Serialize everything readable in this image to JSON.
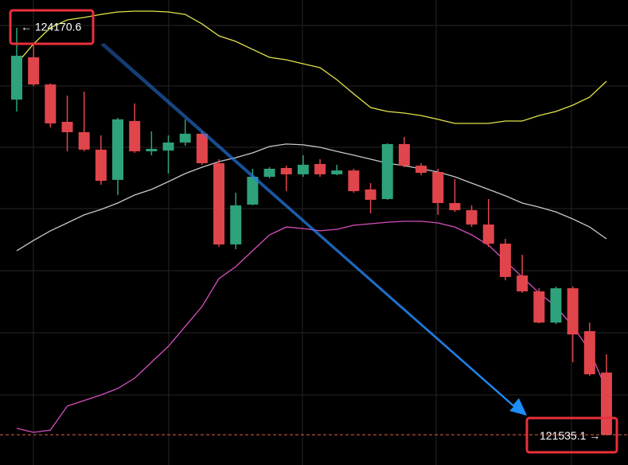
{
  "chart_data": {
    "type": "candlestick",
    "ylim": [
      121339.4,
      124351.1
    ],
    "up_color": "#2ea27a",
    "down_color": "#e0454b",
    "open": [
      123706,
      123980,
      123804,
      123562,
      123495,
      123382,
      123186,
      123567,
      123371,
      123376,
      123428,
      123485,
      123294,
      122768,
      123026,
      123206,
      123263,
      123222,
      123289,
      123222,
      123247,
      123124,
      123062,
      123418,
      123278,
      123237,
      123036,
      122990,
      122897,
      122773,
      122567,
      122464,
      122262,
      122484,
      122206,
      121938
    ],
    "high": [
      124170.6,
      124067,
      123810,
      123732,
      123758,
      123474,
      123588,
      123681,
      123500,
      123474,
      123578,
      123500,
      123320,
      123103,
      123258,
      123268,
      123278,
      123345,
      123320,
      123284,
      123258,
      123165,
      123423,
      123464,
      123294,
      123258,
      123191,
      123021,
      123062,
      122804,
      122701,
      122484,
      122495,
      122495,
      122262,
      122056
    ],
    "low": [
      123629,
      123794,
      123526,
      123371,
      123371,
      123155,
      123088,
      123361,
      123345,
      123227,
      123407,
      123284,
      122752,
      122737,
      123021,
      123196,
      123113,
      123206,
      123206,
      123216,
      123103,
      122969,
      123057,
      123268,
      123216,
      122959,
      122979,
      122881,
      122752,
      122536,
      122454,
      122257,
      122252,
      122005,
      121917,
      121530
    ],
    "close": [
      123990,
      123804,
      123552,
      123495,
      123382,
      123180,
      123578,
      123371,
      123387,
      123428,
      123485,
      123294,
      122768,
      123021,
      123206,
      123258,
      123222,
      123284,
      123222,
      123247,
      123113,
      123057,
      123418,
      123278,
      123232,
      123036,
      122990,
      122897,
      122773,
      122557,
      122464,
      122262,
      122484,
      122185,
      121927,
      121535.1
    ],
    "series": [
      {
        "color": "#e3e34a",
        "values": [
          123938,
          124067,
          124171,
          124222,
          124238,
          124258,
          124274,
          124279,
          124279,
          124274,
          124258,
          124196,
          124119,
          124083,
          124031,
          123980,
          123964,
          123938,
          123913,
          123835,
          123743,
          123655,
          123629,
          123619,
          123603,
          123578,
          123552,
          123552,
          123552,
          123567,
          123567,
          123603,
          123629,
          123670,
          123722,
          123825
        ]
      },
      {
        "color": "#c8c8c8",
        "values": [
          122727,
          122794,
          122856,
          122907,
          122959,
          122995,
          123036,
          123088,
          123124,
          123175,
          123227,
          123268,
          123304,
          123330,
          123361,
          123402,
          123418,
          123413,
          123397,
          123371,
          123346,
          123320,
          123294,
          123278,
          123258,
          123237,
          123206,
          123165,
          123124,
          123083,
          123036,
          123010,
          122979,
          122933,
          122881,
          122804
        ]
      },
      {
        "color": "#d64fbf",
        "values": [
          121577,
          121551,
          121566,
          121721,
          121757,
          121793,
          121835,
          121902,
          122005,
          122108,
          122237,
          122366,
          122546,
          122624,
          122727,
          122830,
          122881,
          122871,
          122856,
          122866,
          122892,
          122902,
          122912,
          122918,
          122918,
          122907,
          122881,
          122830,
          122763,
          122660,
          122557,
          122453,
          122366,
          122237,
          122082,
          121824
        ]
      }
    ],
    "max_label": {
      "value": 124170.6,
      "label": "← 124170.6"
    },
    "last_label": {
      "value": 121535.1,
      "label": "121535.1 →"
    }
  }
}
